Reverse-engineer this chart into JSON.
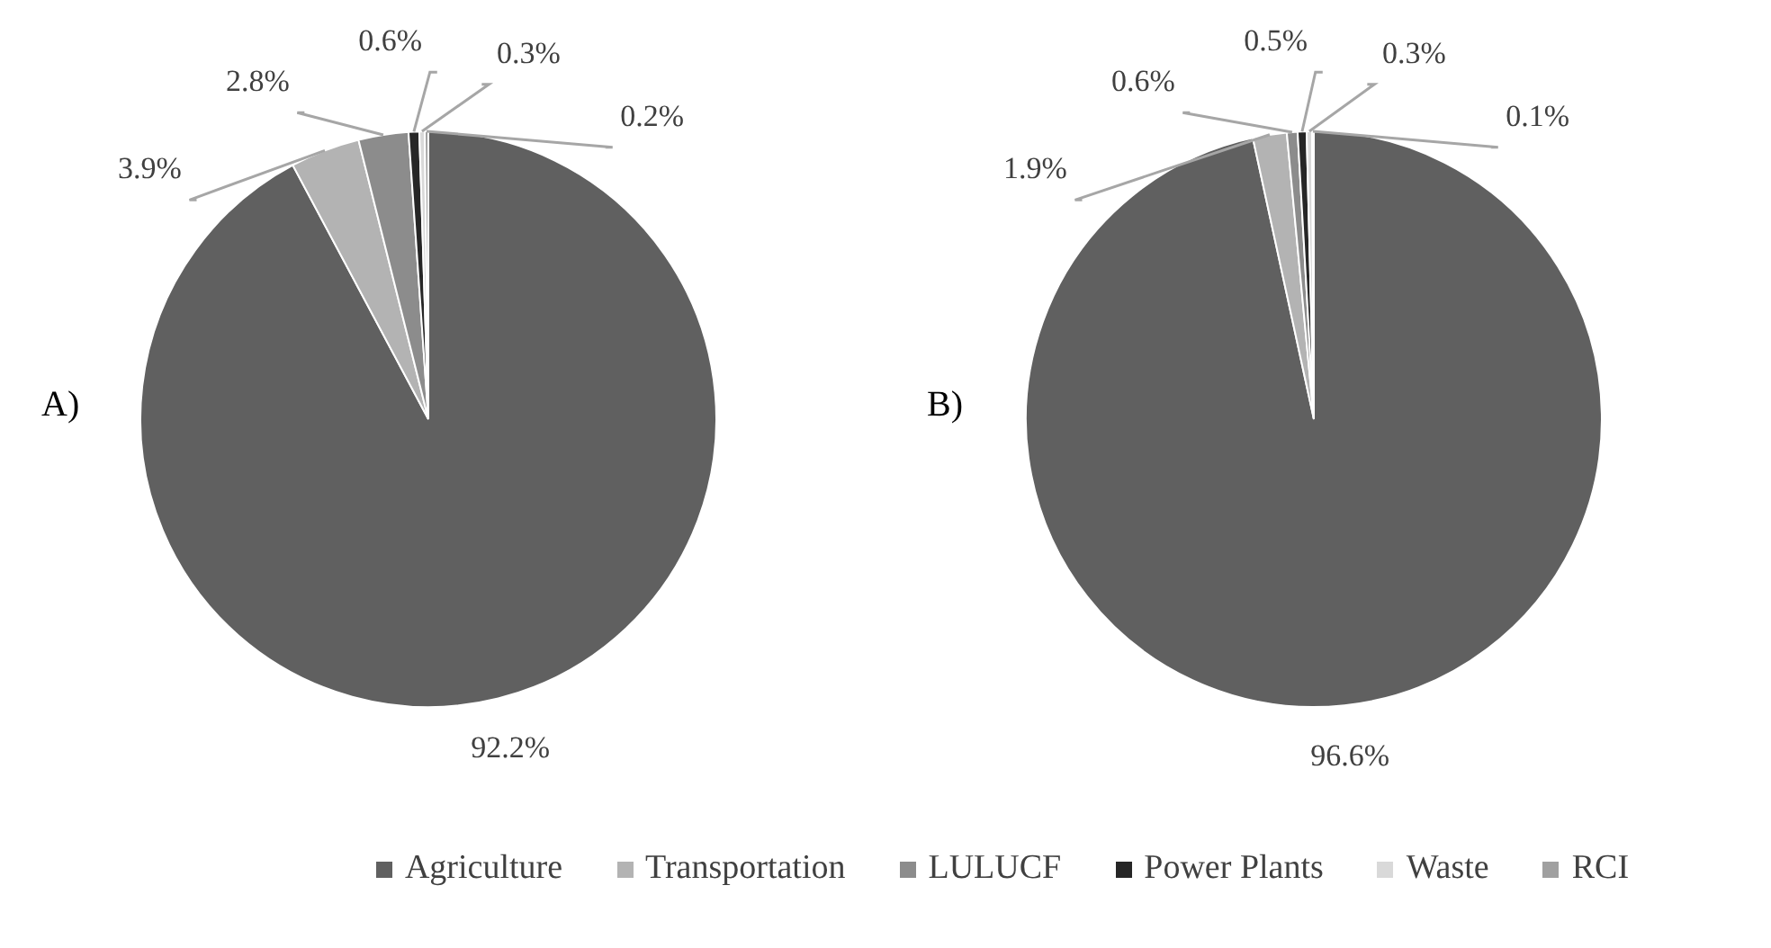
{
  "chart_data": [
    {
      "type": "pie",
      "title": "A)",
      "categories": [
        "Agriculture",
        "Transportation",
        "LULUCF",
        "Power Plants",
        "Waste",
        "RCI"
      ],
      "values": [
        92.2,
        3.9,
        2.8,
        0.6,
        0.3,
        0.2
      ],
      "value_labels": [
        "92.2%",
        "3.9%",
        "2.8%",
        "0.6%",
        "0.3%",
        "0.2%"
      ],
      "colors": [
        "#606060",
        "#b3b3b3",
        "#8c8c8c",
        "#262626",
        "#d9d9d9",
        "#a0a0a0"
      ],
      "legend": "bottom"
    },
    {
      "type": "pie",
      "title": "B)",
      "categories": [
        null,
        null,
        null,
        null,
        null,
        null
      ],
      "values": [
        96.6,
        1.9,
        0.6,
        0.5,
        0.3,
        0.1
      ],
      "value_labels": [
        "96.6%",
        "1.9%",
        "0.6%",
        "0.5%",
        "0.3%",
        "0.1%"
      ],
      "colors": [
        "#606060",
        "#b3b3b3",
        "#8c8c8c",
        "#262626",
        "#d9d9d9",
        "#a0a0a0"
      ]
    }
  ]
}
